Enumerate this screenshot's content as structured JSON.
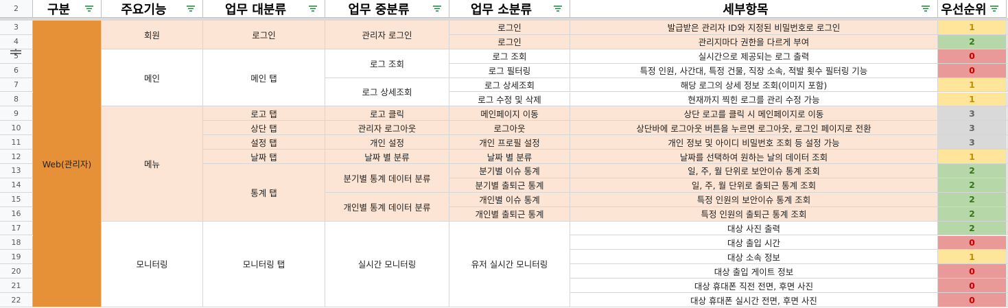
{
  "headers": [
    {
      "label": "구분"
    },
    {
      "label": "주요기능"
    },
    {
      "label": "업무 대분류"
    },
    {
      "label": "업무 중분류"
    },
    {
      "label": "업무 소분류"
    },
    {
      "label": "세부항목"
    },
    {
      "label": "우선순위"
    }
  ],
  "header_row_number": "2",
  "row_numbers": [
    "3",
    "4",
    "5",
    "6",
    "7",
    "8",
    "9",
    "10",
    "11",
    "12",
    "13",
    "14",
    "15",
    "16",
    "17",
    "18",
    "19",
    "20",
    "21",
    "22"
  ],
  "category": "Web(관리자)",
  "features": {
    "member": "회원",
    "main": "메인",
    "menu": "메뉴",
    "monitoring": "모니터링"
  },
  "major": {
    "login": "로그인",
    "main_tab": "메인 탭",
    "logo_tab": "로고 탭",
    "top_tab": "상단 탭",
    "settings_tab": "설정 탭",
    "date_tab": "날짜 탭",
    "stats_tab": "통계 탭",
    "monitor_tab": "모니터링 탭"
  },
  "middle": {
    "admin_login": "관리자 로그인",
    "log_view": "로그 조회",
    "log_detail": "로그 상세조회",
    "logo_click": "로고 클릭",
    "admin_logout": "관리자 로그아웃",
    "personal_settings": "개인 설정",
    "by_date": "날짜 별 분류",
    "quarter_stats": "분기별 통계 데이터 분류",
    "person_stats": "개인별 통계 데이터 분류",
    "realtime_monitor": "실시간 모니터링"
  },
  "minor": [
    "로그인",
    "로그인",
    "로그 조회",
    "로그 필터링",
    "로그 상세조회",
    "로그 수정 및 삭제",
    "메인페이지 이동",
    "로그아웃",
    "개인 프로필 설정",
    "날짜 별 분류",
    "분기별 이슈 통계",
    "분기별 출퇴근 통계",
    "개인별 이슈 통계",
    "개인별 출퇴근 통계"
  ],
  "minor_monitor": "유저 실시간 모니터링",
  "details": [
    "발급받은 관리자 ID와 지정된 비밀번호로 로그인",
    "관리지마다 권한을 다르게 부여",
    "실시간으로 제공되는 로그 출력",
    "특정 인원, 사간대, 특정 건물, 직장 소속, 적발 횟수 필터링 기능",
    "해당 로그의 상세 정보 조회(이미지 포함)",
    "현재까지 찍힌 로그를 관리 수정 가능",
    "상단 로고를 클릭 시 메인페이지로 이동",
    "상단바에 로그아웃 버튼을 누르면 로그아웃, 로그인 페이지로 전환",
    "개인 정보 및 아이디 비밀번호 조회 등 설정 가능",
    "날짜를 선택하여 원하는 날의 데이터 조회",
    "일, 주, 월 단위로 보안이슈 통계 조회",
    "일, 주, 월 단위로 출퇴근 통계 조회",
    "특정 인원의 보안이슈 통계 조회",
    "특정 인원의 출퇴근 통계 조회",
    "대상 사진 출력",
    "대상 출입 시간",
    "대상 소속 정보",
    "대상 출입 게이트 정보",
    "대상 휴대폰 직전 전면, 후면 사진",
    "대상 휴대폰 실시간 전면, 후면 사진"
  ],
  "priorities": [
    "1",
    "2",
    "0",
    "0",
    "1",
    "1",
    "3",
    "3",
    "3",
    "1",
    "2",
    "2",
    "2",
    "2",
    "2",
    "0",
    "1",
    "0",
    "0",
    "0"
  ],
  "colors": {
    "peach": "#fce5d4",
    "orange": "#e69138",
    "p0": "#ea9999",
    "p1": "#ffe599",
    "p2": "#b6d7a8",
    "p3": "#d9d9d9"
  },
  "icons": {
    "filter": "filter-icon",
    "row_resize": "row-resize-handle-icon"
  }
}
